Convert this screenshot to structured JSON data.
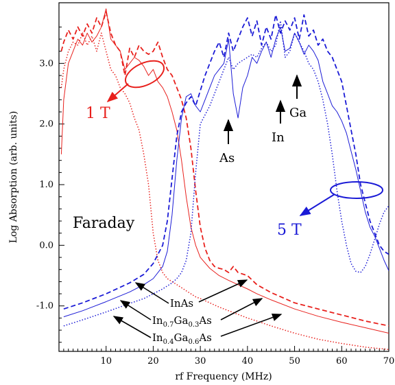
{
  "chart_data": {
    "type": "line",
    "xlabel": "rf Frequency (MHz)",
    "ylabel": "Log Absorption (arb. units)",
    "xlim": [
      0,
      70
    ],
    "ylim": [
      -1.75,
      4.0
    ],
    "x_ticks": [
      10,
      20,
      30,
      40,
      50,
      60,
      70
    ],
    "y_ticks": [
      -1.0,
      0.0,
      1.0,
      2.0,
      3.0
    ],
    "y_tick_labels": [
      "-1.0",
      "0.0",
      "1.0",
      "2.0",
      "3.0"
    ],
    "grid": false,
    "colors": {
      "one_tesla": "#e8201c",
      "five_tesla": "#1a1ad6"
    },
    "series": [
      {
        "key": "inas_1t",
        "field": "1 T",
        "material": "InAs",
        "style": "dashed",
        "color": "#e8201c",
        "x": [
          0.5,
          1,
          2,
          3,
          4,
          5,
          6,
          7,
          8,
          9,
          10,
          11,
          12,
          13,
          14,
          15,
          16,
          17,
          18,
          19,
          20,
          21,
          22,
          23,
          24,
          25,
          26,
          27,
          28,
          29,
          30,
          31,
          32,
          33,
          34,
          35,
          36,
          37,
          38,
          40,
          42,
          45,
          50,
          55,
          60,
          65,
          70
        ],
        "y": [
          3.2,
          3.35,
          3.55,
          3.4,
          3.6,
          3.45,
          3.65,
          3.5,
          3.75,
          3.6,
          3.85,
          3.5,
          3.3,
          3.2,
          2.8,
          3.25,
          3.1,
          3.3,
          3.2,
          3.15,
          3.2,
          3.35,
          3.1,
          2.9,
          2.8,
          2.6,
          2.4,
          2.1,
          1.6,
          0.9,
          0.3,
          -0.05,
          -0.25,
          -0.35,
          -0.38,
          -0.4,
          -0.45,
          -0.35,
          -0.45,
          -0.5,
          -0.65,
          -0.78,
          -0.95,
          -1.05,
          -1.15,
          -1.25,
          -1.33
        ]
      },
      {
        "key": "ingaas_07_1t",
        "field": "1 T",
        "material": "In0.7Ga0.3As",
        "style": "solid",
        "color": "#e8201c",
        "x": [
          0.5,
          1,
          2,
          3,
          4,
          5,
          6,
          7,
          8,
          9,
          10,
          11,
          12,
          13,
          14,
          15,
          16,
          17,
          18,
          19,
          20,
          21,
          22,
          23,
          24,
          25,
          26,
          27,
          28,
          29,
          30,
          32,
          34,
          36,
          38,
          40,
          42,
          45,
          50,
          55,
          60,
          65,
          70
        ],
        "y": [
          1.5,
          2.4,
          3.0,
          3.2,
          3.4,
          3.3,
          3.5,
          3.35,
          3.45,
          3.6,
          3.9,
          3.4,
          3.3,
          3.2,
          2.9,
          3.0,
          3.1,
          3.05,
          2.95,
          2.8,
          2.9,
          2.7,
          2.6,
          2.45,
          2.2,
          1.9,
          1.4,
          0.8,
          0.3,
          0.0,
          -0.2,
          -0.38,
          -0.5,
          -0.58,
          -0.65,
          -0.72,
          -0.8,
          -0.9,
          -1.05,
          -1.17,
          -1.27,
          -1.36,
          -1.45
        ]
      },
      {
        "key": "ingaas_04_1t",
        "field": "1 T",
        "material": "In0.4Ga0.6As",
        "style": "dotted",
        "color": "#e8201c",
        "x": [
          0.5,
          1,
          2,
          3,
          4,
          5,
          6,
          7,
          8,
          9,
          10,
          11,
          12,
          13,
          14,
          15,
          16,
          17,
          18,
          19,
          20,
          21,
          22,
          23,
          24,
          25,
          26,
          27,
          28,
          29,
          30,
          32,
          34,
          36,
          38,
          40,
          42,
          45,
          50,
          55,
          60,
          65,
          70
        ],
        "y": [
          2.6,
          2.9,
          3.2,
          3.35,
          3.3,
          3.5,
          3.3,
          3.45,
          3.2,
          3.5,
          3.2,
          2.9,
          2.8,
          2.6,
          2.5,
          2.35,
          2.1,
          1.9,
          1.5,
          1.0,
          0.2,
          -0.25,
          -0.45,
          -0.55,
          -0.6,
          -0.65,
          -0.7,
          -0.75,
          -0.8,
          -0.85,
          -0.88,
          -0.95,
          -1.02,
          -1.08,
          -1.14,
          -1.2,
          -1.25,
          -1.33,
          -1.45,
          -1.55,
          -1.62,
          -1.68,
          -1.72
        ]
      },
      {
        "key": "inas_5t",
        "field": "5 T",
        "material": "InAs",
        "style": "dashed",
        "color": "#1a1ad6",
        "x": [
          1,
          5,
          10,
          15,
          18,
          20,
          22,
          23,
          24,
          25,
          26,
          27,
          28,
          29,
          30,
          31,
          32,
          33,
          34,
          35,
          36,
          37,
          38,
          39,
          40,
          41,
          42,
          43,
          44,
          45,
          46,
          47,
          48,
          49,
          50,
          51,
          52,
          53,
          54,
          55,
          56,
          57,
          58,
          59,
          60,
          61,
          62,
          63,
          64,
          65,
          66,
          67,
          68,
          69,
          70
        ],
        "y": [
          -1.05,
          -0.95,
          -0.8,
          -0.62,
          -0.48,
          -0.3,
          0.0,
          0.4,
          1.1,
          1.8,
          2.2,
          2.35,
          2.45,
          2.3,
          2.55,
          2.8,
          3.0,
          3.2,
          3.35,
          3.1,
          3.5,
          3.2,
          3.4,
          3.6,
          3.75,
          3.45,
          3.7,
          3.3,
          3.6,
          3.4,
          3.8,
          3.5,
          3.7,
          3.55,
          3.75,
          3.4,
          3.8,
          3.45,
          3.55,
          3.3,
          3.4,
          3.2,
          3.1,
          2.9,
          2.7,
          2.3,
          1.9,
          1.5,
          1.0,
          0.7,
          0.4,
          0.2,
          0.0,
          -0.1,
          -0.15
        ]
      },
      {
        "key": "ingaas_07_5t",
        "field": "5 T",
        "material": "In0.7Ga0.3As",
        "style": "solid",
        "color": "#1a1ad6",
        "x": [
          1,
          5,
          10,
          15,
          18,
          20,
          22,
          23,
          24,
          25,
          26,
          27,
          28,
          29,
          30,
          31,
          32,
          33,
          34,
          35,
          36,
          37,
          38,
          39,
          40,
          41,
          42,
          43,
          44,
          45,
          46,
          47,
          48,
          49,
          50,
          51,
          52,
          53,
          54,
          55,
          56,
          57,
          58,
          59,
          60,
          61,
          62,
          63,
          64,
          65,
          66,
          67,
          68,
          69,
          70
        ],
        "y": [
          -1.18,
          -1.08,
          -0.93,
          -0.77,
          -0.65,
          -0.55,
          -0.35,
          -0.1,
          0.5,
          1.4,
          2.1,
          2.45,
          2.5,
          2.3,
          2.2,
          2.4,
          2.6,
          2.8,
          2.9,
          3.0,
          3.4,
          2.5,
          2.1,
          2.6,
          2.8,
          3.1,
          3.0,
          3.2,
          3.35,
          3.1,
          3.4,
          3.6,
          3.2,
          3.25,
          3.5,
          3.35,
          3.15,
          3.3,
          3.2,
          3.05,
          2.7,
          2.5,
          2.3,
          2.2,
          2.05,
          1.85,
          1.55,
          1.25,
          0.9,
          0.55,
          0.3,
          0.15,
          -0.05,
          -0.25,
          -0.42
        ]
      },
      {
        "key": "ingaas_04_5t",
        "field": "5 T",
        "material": "In0.4Ga0.6As",
        "style": "dotted",
        "color": "#1a1ad6",
        "x": [
          1,
          5,
          10,
          15,
          18,
          20,
          22,
          24,
          25,
          26,
          27,
          28,
          29,
          30,
          31,
          32,
          33,
          34,
          35,
          36,
          37,
          38,
          39,
          40,
          41,
          42,
          43,
          44,
          45,
          46,
          47,
          48,
          49,
          50,
          51,
          52,
          53,
          54,
          55,
          56,
          57,
          58,
          59,
          60,
          61,
          62,
          63,
          64,
          65,
          66,
          67,
          68,
          69,
          70
        ],
        "y": [
          -1.33,
          -1.23,
          -1.1,
          -0.96,
          -0.88,
          -0.8,
          -0.72,
          -0.62,
          -0.55,
          -0.45,
          -0.25,
          0.2,
          1.2,
          2.0,
          2.15,
          2.3,
          2.5,
          2.7,
          2.9,
          3.1,
          2.9,
          3.0,
          3.05,
          3.1,
          3.15,
          3.1,
          3.25,
          3.35,
          3.2,
          3.3,
          3.7,
          3.1,
          3.2,
          3.5,
          3.35,
          3.2,
          3.0,
          2.9,
          2.7,
          2.4,
          2.0,
          1.5,
          0.9,
          0.4,
          0.0,
          -0.3,
          -0.43,
          -0.45,
          -0.35,
          -0.15,
          0.1,
          0.35,
          0.55,
          0.65
        ]
      }
    ],
    "annotations": {
      "field_1t": "1 T",
      "field_5t": "5 T",
      "faraday": "Faraday",
      "peak_as": "As",
      "peak_in": "In",
      "peak_ga": "Ga",
      "legend_inas": "InAs",
      "legend_in07": {
        "el1": "In",
        "sub1": "0.7",
        "el2": "Ga",
        "sub2": "0.3",
        "el3": "As"
      },
      "legend_in04": {
        "el1": "In",
        "sub1": "0.4",
        "el2": "Ga",
        "sub2": "0.6",
        "el3": "As"
      }
    }
  }
}
